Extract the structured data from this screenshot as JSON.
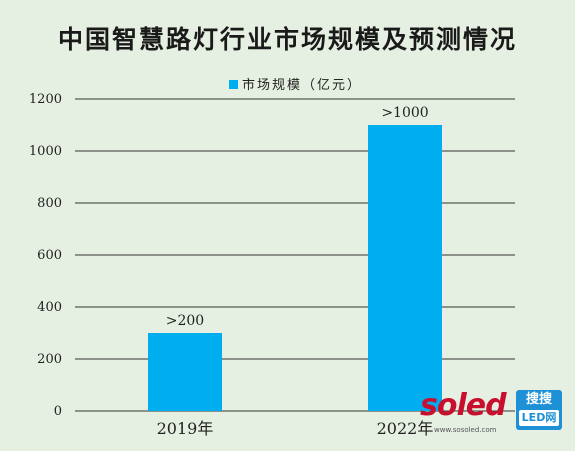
{
  "chart_data": {
    "type": "bar",
    "title": "中国智慧路灯行业市场规模及预测情况",
    "categories": [
      "2019年",
      "2022年"
    ],
    "series": [
      {
        "name": "市场规模（亿元）",
        "values": [
          300,
          1100
        ],
        "data_labels": [
          ">200",
          ">1000"
        ],
        "color": "#00aeef"
      }
    ],
    "ylim": [
      0,
      1200
    ],
    "yticks": [
      0,
      200,
      400,
      600,
      800,
      1000,
      1200
    ],
    "grid": true,
    "legend_position": "top-center"
  },
  "watermark": {
    "brand": "soled",
    "box_line1": "搜搜",
    "box_line2": "LED网",
    "url": "www.sosoled.com"
  }
}
